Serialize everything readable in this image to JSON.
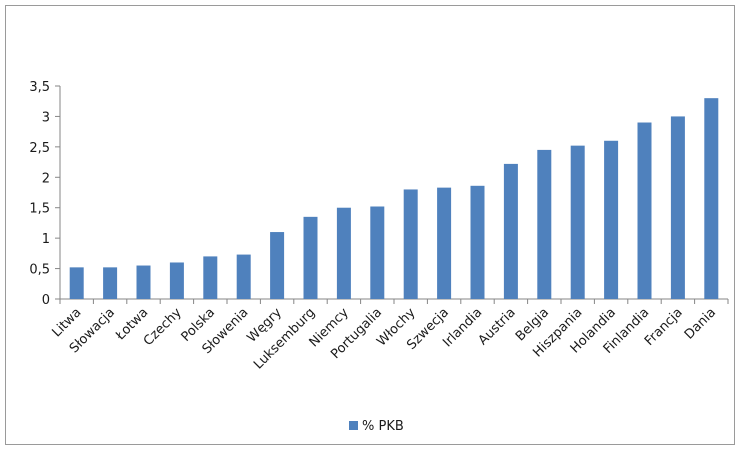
{
  "chart_data": {
    "type": "bar",
    "categories": [
      "Litwa",
      "Słowacja",
      "Łotwa",
      "Czechy",
      "Polska",
      "Słowenia",
      "Węgry",
      "Luksemburg",
      "Niemcy",
      "Portugalia",
      "Włochy",
      "Szwecja",
      "Irlandia",
      "Austria",
      "Belgia",
      "Hiszpania",
      "Holandia",
      "Finlandia",
      "Francja",
      "Dania"
    ],
    "series": [
      {
        "name": "% PKB",
        "color": "#4f81bd",
        "values": [
          0.52,
          0.52,
          0.55,
          0.6,
          0.7,
          0.73,
          1.1,
          1.35,
          1.5,
          1.52,
          1.8,
          1.83,
          1.86,
          2.22,
          2.45,
          2.52,
          2.6,
          2.9,
          3.0,
          3.3
        ]
      }
    ],
    "title": "",
    "xlabel": "",
    "ylabel": "",
    "ylim": [
      0,
      3.5
    ],
    "yticks": [
      "0",
      "0,5",
      "1",
      "1,5",
      "2",
      "2,5",
      "3",
      "3,5"
    ],
    "grid": false,
    "legend": "bottom"
  }
}
